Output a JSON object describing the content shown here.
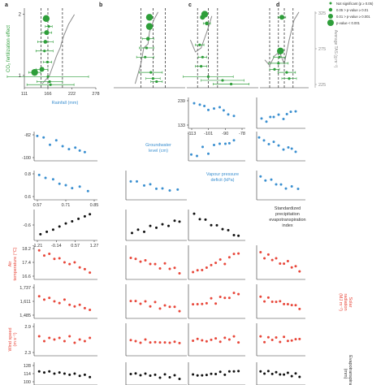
{
  "colors": {
    "black": "#111111",
    "blue": "#3a8fd0",
    "red": "#e8473a",
    "green": "#2e9e3a",
    "gray": "#8a8a8a"
  },
  "panel_letters": [
    "a",
    "b",
    "c",
    "d"
  ],
  "legend": {
    "items": [
      "Not significant (p ≥ 0.05)",
      "0.05 > p-value ≥ 0.01",
      "0.01 > p-value ≥ 0.001",
      "p-value < 0.001"
    ]
  },
  "labels": {
    "co2": "CO₂ fertilization effect",
    "tas": "Average TAS (g m⁻²)",
    "rainfall": "Rainfall (mm)",
    "groundwater": [
      "Groundwater",
      "level (cm)"
    ],
    "vpd": [
      "Vapour pressure",
      "deficit (kPa)"
    ],
    "spei": [
      "Standardized",
      "precipitation",
      "evapotranspiration",
      "index"
    ],
    "air_temp": [
      "Air",
      "temperature (°C)"
    ],
    "solar": [
      "Solar",
      "radiation",
      "(MJ m⁻²)"
    ],
    "wind": [
      "Wind speed",
      "(m s⁻¹)"
    ],
    "evapo": [
      "Evapotranspiration",
      "(mm)"
    ]
  },
  "chart_data": [
    {
      "type": "scatter",
      "panel": "top-a",
      "ylabel": "CO₂ fertilization effect",
      "xlabel": "Rainfall (mm)",
      "xticks": [
        "111",
        "166",
        "222",
        "278"
      ],
      "yticks": [
        "1",
        "2"
      ],
      "xlim": [
        111,
        278
      ],
      "ylim": [
        0.8,
        2.1
      ],
      "points": [
        {
          "x": 162,
          "y": 1.93,
          "p": 3,
          "xerr": 6
        },
        {
          "x": 163,
          "y": 1.7,
          "p": 2,
          "xerr": 12
        },
        {
          "x": 160,
          "y": 1.55,
          "p": 1,
          "xerr": 18
        },
        {
          "x": 158,
          "y": 1.4,
          "p": 0,
          "xerr": 20
        },
        {
          "x": 152,
          "y": 1.1,
          "p": 2,
          "xerr": 14
        },
        {
          "x": 135,
          "y": 1.05,
          "p": 3,
          "xerr": 14
        },
        {
          "x": 166,
          "y": 0.98,
          "p": 0,
          "xerr": 95
        },
        {
          "x": 170,
          "y": 0.9,
          "p": 0,
          "xerr": 30
        },
        {
          "x": 172,
          "y": 0.85,
          "p": 0,
          "xerr": 55
        },
        {
          "x": 165,
          "y": 1.22,
          "p": 0,
          "xerr": 10
        },
        {
          "x": 168,
          "y": 1.8,
          "p": 0,
          "xerr": 8
        }
      ],
      "dashed_x": [
        150,
        166,
        200
      ]
    },
    {
      "type": "scatter",
      "panel": "top-b",
      "points": [
        {
          "x": 0.5,
          "y": 1.95,
          "p": 3,
          "xerr": 0.04
        },
        {
          "x": 0.5,
          "y": 1.8,
          "p": 3,
          "xerr": 0.04
        },
        {
          "x": 0.48,
          "y": 1.6,
          "p": 1,
          "xerr": 0.08
        },
        {
          "x": 0.46,
          "y": 1.45,
          "p": 0,
          "xerr": 0.1
        },
        {
          "x": 0.44,
          "y": 1.3,
          "p": 0,
          "xerr": 0.12
        },
        {
          "x": 0.52,
          "y": 1.05,
          "p": 0,
          "xerr": 0.16
        },
        {
          "x": 0.55,
          "y": 0.95,
          "p": 0,
          "xerr": 0.1
        },
        {
          "x": 0.6,
          "y": 0.9,
          "p": 0,
          "xerr": 0.08
        }
      ],
      "dashed_x": [
        0.38,
        0.55,
        0.72
      ]
    },
    {
      "type": "scatter",
      "panel": "top-c",
      "points": [
        {
          "x": 0.25,
          "y": 2.0,
          "p": 3,
          "xerr": 0.03
        },
        {
          "x": 0.22,
          "y": 1.95,
          "p": 2,
          "xerr": 0.03
        },
        {
          "x": 0.28,
          "y": 1.85,
          "p": 1,
          "xerr": 0.05
        },
        {
          "x": 0.18,
          "y": 1.5,
          "p": 0,
          "xerr": 0.06
        },
        {
          "x": 0.22,
          "y": 1.3,
          "p": 0,
          "xerr": 0.06
        },
        {
          "x": 0.2,
          "y": 1.15,
          "p": 0,
          "xerr": 0.08
        },
        {
          "x": 0.3,
          "y": 0.98,
          "p": 0,
          "xerr": 0.35
        },
        {
          "x": 0.5,
          "y": 0.92,
          "p": 0,
          "xerr": 0.3
        },
        {
          "x": 0.62,
          "y": 0.86,
          "p": 0,
          "xerr": 0.25
        }
      ],
      "dashed_x": [
        0.15,
        0.3,
        0.43
      ]
    },
    {
      "type": "scatter",
      "panel": "top-d",
      "ylabel": "Average TAS (g m⁻²)",
      "y2ticks": [
        "225",
        "275",
        "325"
      ],
      "points": [
        {
          "x": 0.45,
          "y": 1.95,
          "p": 2,
          "xerr": 0.08
        },
        {
          "x": 0.42,
          "y": 1.4,
          "p": 3,
          "xerr": 0.05
        },
        {
          "x": 0.4,
          "y": 1.3,
          "p": 0,
          "xerr": 0.12
        },
        {
          "x": 0.38,
          "y": 1.2,
          "p": 0,
          "xerr": 0.2
        },
        {
          "x": 0.3,
          "y": 1.1,
          "p": 0,
          "xerr": 0.1
        },
        {
          "x": 0.55,
          "y": 1.05,
          "p": 0,
          "xerr": 0.18
        },
        {
          "x": 0.6,
          "y": 0.95,
          "p": 0,
          "xerr": 0.15
        }
      ],
      "dashed_x": [
        0.2,
        0.38,
        0.5,
        0.68
      ]
    },
    {
      "type": "scatter",
      "row": "rainfall",
      "color": "blue",
      "yticks": [
        "239",
        "133"
      ],
      "xticks": [
        "-113",
        "-101",
        "-90",
        "-78"
      ],
      "xlabel": "Groundwater level (cm)",
      "points": [
        [
          0.1,
          0.25
        ],
        [
          0.2,
          0.2
        ],
        [
          0.28,
          0.3
        ],
        [
          0.35,
          0.35
        ],
        [
          0.45,
          0.4
        ],
        [
          0.55,
          0.3
        ],
        [
          0.62,
          0.45
        ],
        [
          0.7,
          0.5
        ],
        [
          0.8,
          0.6
        ]
      ]
    },
    {
      "type": "scatter",
      "row": "groundwater",
      "color": "blue",
      "yticks": [
        "-82",
        "-100"
      ],
      "points": [
        [
          0.05,
          0.85
        ],
        [
          0.15,
          0.8
        ],
        [
          0.25,
          0.55
        ],
        [
          0.35,
          0.7
        ],
        [
          0.45,
          0.5
        ],
        [
          0.55,
          0.4
        ],
        [
          0.65,
          0.45
        ],
        [
          0.72,
          0.35
        ],
        [
          0.8,
          0.3
        ]
      ]
    },
    {
      "type": "scatter",
      "row": "vpd",
      "color": "blue",
      "yticks": [
        "0.8",
        "0.6"
      ],
      "xticks": [
        "0.57",
        "0.71",
        "0.85"
      ],
      "points": [
        [
          0.08,
          0.85
        ],
        [
          0.18,
          0.75
        ],
        [
          0.3,
          0.7
        ],
        [
          0.4,
          0.55
        ],
        [
          0.5,
          0.5
        ],
        [
          0.6,
          0.4
        ],
        [
          0.72,
          0.45
        ],
        [
          0.85,
          0.3
        ]
      ]
    },
    {
      "type": "scatter",
      "row": "spei",
      "color": "black",
      "yticks": [
        "-0.6"
      ],
      "xticks": [
        "-1.21",
        "-0.14",
        "0.57",
        "1.27"
      ],
      "points": [
        [
          0.1,
          0.2
        ],
        [
          0.2,
          0.28
        ],
        [
          0.3,
          0.35
        ],
        [
          0.4,
          0.45
        ],
        [
          0.5,
          0.55
        ],
        [
          0.6,
          0.62
        ],
        [
          0.7,
          0.7
        ],
        [
          0.8,
          0.78
        ],
        [
          0.88,
          0.85
        ]
      ]
    },
    {
      "type": "scatter",
      "row": "air_temp",
      "color": "red",
      "yticks": [
        "18.2",
        "17.4",
        "16.6"
      ],
      "points": [
        [
          0.08,
          0.85
        ],
        [
          0.16,
          0.7
        ],
        [
          0.24,
          0.75
        ],
        [
          0.32,
          0.6
        ],
        [
          0.4,
          0.62
        ],
        [
          0.48,
          0.5
        ],
        [
          0.56,
          0.45
        ],
        [
          0.64,
          0.5
        ],
        [
          0.72,
          0.35
        ],
        [
          0.8,
          0.3
        ],
        [
          0.88,
          0.2
        ]
      ]
    },
    {
      "type": "scatter",
      "row": "solar",
      "color": "red",
      "yticks": [
        "1,737",
        "1,611",
        "1,485"
      ],
      "points": [
        [
          0.08,
          0.65
        ],
        [
          0.16,
          0.55
        ],
        [
          0.24,
          0.6
        ],
        [
          0.32,
          0.5
        ],
        [
          0.4,
          0.45
        ],
        [
          0.48,
          0.55
        ],
        [
          0.56,
          0.4
        ],
        [
          0.64,
          0.35
        ],
        [
          0.72,
          0.4
        ],
        [
          0.8,
          0.3
        ],
        [
          0.88,
          0.25
        ]
      ]
    },
    {
      "type": "scatter",
      "row": "wind",
      "color": "red",
      "yticks": [
        "2.9",
        "2.3"
      ],
      "points": [
        [
          0.08,
          0.6
        ],
        [
          0.16,
          0.45
        ],
        [
          0.24,
          0.55
        ],
        [
          0.32,
          0.5
        ],
        [
          0.4,
          0.55
        ],
        [
          0.48,
          0.45
        ],
        [
          0.56,
          0.6
        ],
        [
          0.64,
          0.4
        ],
        [
          0.72,
          0.5
        ],
        [
          0.8,
          0.45
        ],
        [
          0.88,
          0.55
        ]
      ]
    },
    {
      "type": "scatter",
      "row": "evapo",
      "color": "black",
      "yticks": [
        "128",
        "114",
        "100"
      ],
      "points": [
        [
          0.08,
          0.6
        ],
        [
          0.16,
          0.55
        ],
        [
          0.24,
          0.6
        ],
        [
          0.32,
          0.5
        ],
        [
          0.4,
          0.55
        ],
        [
          0.48,
          0.5
        ],
        [
          0.56,
          0.45
        ],
        [
          0.64,
          0.5
        ],
        [
          0.72,
          0.4
        ],
        [
          0.8,
          0.45
        ],
        [
          0.88,
          0.35
        ]
      ]
    }
  ]
}
